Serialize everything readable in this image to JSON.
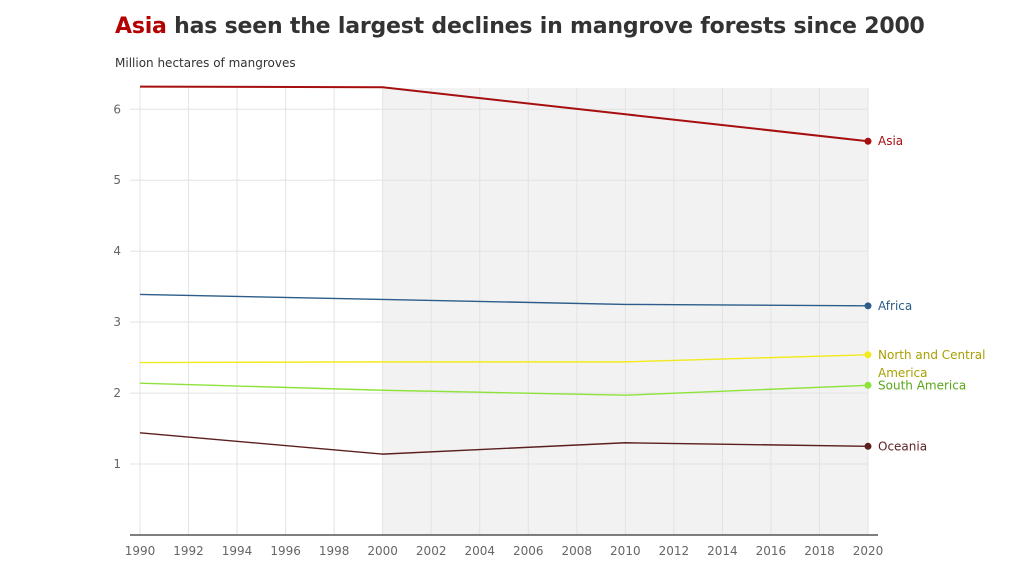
{
  "title": {
    "highlight": "Asia",
    "rest": " has seen the largest declines in mangrove forests since 2000"
  },
  "subtitle": "Million hectares of mangroves",
  "colors": {
    "title_highlight": "#b30000",
    "shade": "#f2f2f2",
    "grid": "#e3e3e3",
    "axis": "#333333"
  },
  "chart_data": {
    "type": "line",
    "title": "Asia has seen the largest declines in mangrove forests since 2000",
    "ylabel": "Million hectares of mangroves",
    "xlabel": "",
    "xlim": [
      1990,
      2020
    ],
    "ylim": [
      0,
      6.3
    ],
    "x_ticks": [
      1990,
      1992,
      1994,
      1996,
      1998,
      2000,
      2002,
      2004,
      2006,
      2008,
      2010,
      2012,
      2014,
      2016,
      2018,
      2020
    ],
    "y_ticks": [
      1,
      2,
      3,
      4,
      5,
      6
    ],
    "shaded_range": [
      2000,
      2020
    ],
    "grid": true,
    "legend": "direct labels at line ends (right)",
    "x": [
      1990,
      2000,
      2010,
      2020
    ],
    "series": [
      {
        "name": "Asia",
        "color": "#a60f0f",
        "values": [
          6.32,
          6.31,
          5.93,
          5.55
        ],
        "label_lines": [
          "Asia"
        ]
      },
      {
        "name": "Africa",
        "color": "#2b5c8a",
        "values": [
          3.39,
          3.32,
          3.25,
          3.23
        ],
        "label_lines": [
          "Africa"
        ]
      },
      {
        "name": "North and Central America",
        "color": "#f2ea1d",
        "label_color": "#a8a000",
        "values": [
          2.43,
          2.44,
          2.44,
          2.54
        ],
        "label_lines": [
          "North and Central",
          "America"
        ]
      },
      {
        "name": "South America",
        "color": "#8ee33b",
        "label_color": "#5aa61a",
        "values": [
          2.14,
          2.04,
          1.97,
          2.11
        ],
        "label_lines": [
          "South America"
        ]
      },
      {
        "name": "Oceania",
        "color": "#5c1f1f",
        "values": [
          1.44,
          1.14,
          1.3,
          1.25
        ],
        "label_lines": [
          "Oceania"
        ]
      }
    ]
  }
}
